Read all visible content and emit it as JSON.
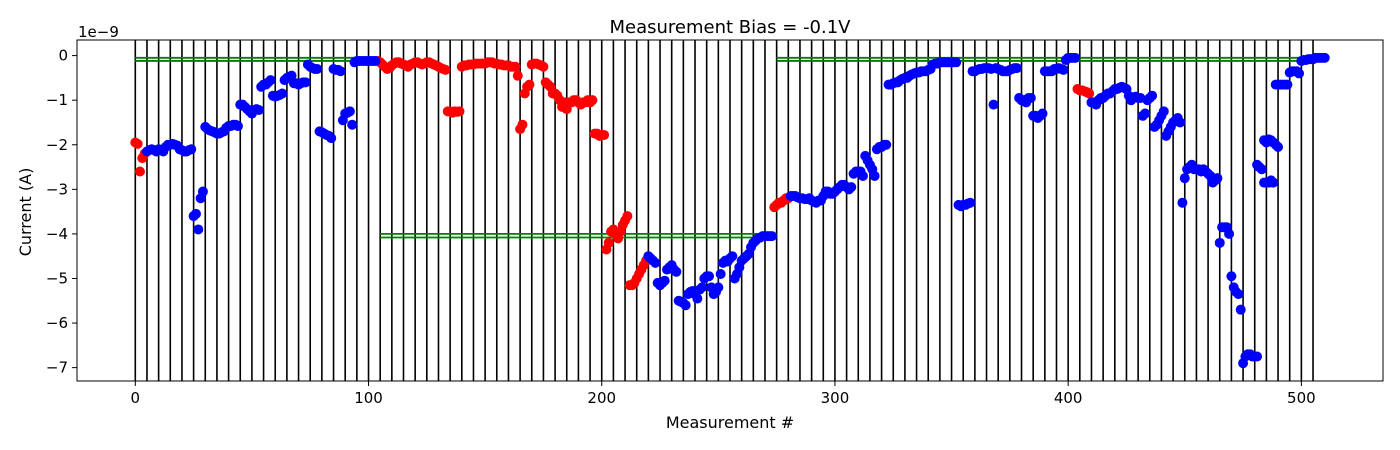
{
  "chart_data": {
    "type": "scatter",
    "title": "Measurement Bias = -0.1V",
    "xlabel": "Measurement #",
    "ylabel": "Current (A)",
    "y_offset_label": "1e−9",
    "xlim": [
      -25,
      535
    ],
    "ylim": [
      -7.3,
      0.35
    ],
    "xticks": [
      0,
      100,
      200,
      300,
      400,
      500
    ],
    "xtick_labels": [
      "0",
      "100",
      "200",
      "300",
      "400",
      "500"
    ],
    "yticks": [
      0,
      -1,
      -2,
      -3,
      -4,
      -5,
      -6,
      -7
    ],
    "ytick_labels": [
      "0",
      "−1",
      "−2",
      "−3",
      "−4",
      "−5",
      "−6",
      "−7"
    ],
    "grid": false,
    "colors": {
      "blue": "#0000ff",
      "red": "#ff0000",
      "green": "#008000",
      "vline": "#000000"
    },
    "vertical_lines_x": [
      0,
      5,
      10,
      15,
      20,
      25,
      30,
      35,
      40,
      45,
      50,
      55,
      60,
      65,
      70,
      75,
      80,
      85,
      90,
      95,
      100,
      105,
      110,
      115,
      120,
      125,
      130,
      135,
      140,
      145,
      150,
      155,
      160,
      165,
      170,
      175,
      180,
      185,
      190,
      195,
      200,
      205,
      210,
      215,
      220,
      225,
      230,
      235,
      240,
      245,
      250,
      255,
      260,
      265,
      270,
      275,
      280,
      285,
      290,
      295,
      300,
      305,
      310,
      315,
      320,
      325,
      330,
      335,
      340,
      345,
      350,
      355,
      360,
      365,
      370,
      375,
      380,
      385,
      390,
      395,
      400,
      405,
      410,
      415,
      420,
      425,
      430,
      435,
      440,
      445,
      450,
      455,
      460,
      465,
      470,
      475,
      480,
      485,
      490,
      495,
      500,
      505
    ],
    "reference_lines": [
      {
        "x_start": 0,
        "x_end": 103,
        "y": -0.05
      },
      {
        "x_start": 0,
        "x_end": 103,
        "y": -0.12
      },
      {
        "x_start": 105,
        "x_end": 275,
        "y": -4.0
      },
      {
        "x_start": 105,
        "x_end": 275,
        "y": -4.08
      },
      {
        "x_start": 275,
        "x_end": 505,
        "y": -0.05
      },
      {
        "x_start": 275,
        "x_end": 505,
        "y": -0.12
      }
    ],
    "series": [
      {
        "color": "#ff0000",
        "segments": [
          {
            "x_start": 0,
            "x_end": 4,
            "y": [
              -1.95,
              -1.98,
              -2.6,
              -2.3,
              -2.2
            ]
          },
          {
            "x_start": 104,
            "x_end": 133,
            "y": [
              -0.12,
              -0.15,
              -0.2,
              -0.25,
              -0.3,
              -0.28,
              -0.22,
              -0.18,
              -0.15,
              -0.15,
              -0.18,
              -0.2,
              -0.22,
              -0.25,
              -0.2,
              -0.18,
              -0.15,
              -0.15,
              -0.18,
              -0.2,
              -0.18,
              -0.15,
              -0.15,
              -0.18,
              -0.2,
              -0.22,
              -0.25,
              -0.28,
              -0.3,
              -0.32
            ]
          },
          {
            "x_start": 134,
            "x_end": 139,
            "y": [
              -1.25,
              -1.25,
              -1.28,
              -1.25,
              -1.26,
              -1.25
            ]
          },
          {
            "x_start": 140,
            "x_end": 163,
            "y": [
              -0.25,
              -0.22,
              -0.22,
              -0.2,
              -0.2,
              -0.2,
              -0.18,
              -0.18,
              -0.18,
              -0.18,
              -0.18,
              -0.15,
              -0.15,
              -0.15,
              -0.18,
              -0.18,
              -0.2,
              -0.2,
              -0.22,
              -0.22,
              -0.22,
              -0.25,
              -0.25,
              -0.25
            ]
          },
          {
            "x_start": 164,
            "x_end": 169,
            "y": [
              -0.45,
              -1.65,
              -1.55,
              -0.85,
              -0.7,
              -0.65
            ]
          },
          {
            "x_start": 170,
            "x_end": 175,
            "y": [
              -0.2,
              -0.18,
              -0.18,
              -0.2,
              -0.22,
              -0.25
            ]
          },
          {
            "x_start": 176,
            "x_end": 200,
            "y": [
              -0.6,
              -0.65,
              -0.7,
              -0.85,
              -0.85,
              -0.9,
              -1.0,
              -1.15,
              -1.05,
              -1.2,
              -1.05,
              -1.05,
              -1.0,
              -1.0,
              -1.05,
              -1.1,
              -1.05,
              -1.05,
              -1.0,
              -1.05,
              -1.0,
              -1.75,
              -1.75,
              -1.8,
              -1.78
            ]
          },
          {
            "x_start": 201,
            "x_end": 219,
            "y": [
              -1.78,
              -4.35,
              -4.2,
              -3.95,
              -3.9,
              -4.0,
              -4.1,
              -3.95,
              -3.8,
              -3.7,
              -3.6,
              -5.15,
              -5.15,
              -5.1,
              -5.0,
              -4.9,
              -4.8,
              -4.7,
              -4.6
            ]
          },
          {
            "x_start": 274,
            "x_end": 280,
            "y": [
              -3.4,
              -3.35,
              -3.3,
              -3.3,
              -3.25,
              -3.2,
              -3.2
            ]
          },
          {
            "x_start": 404,
            "x_end": 409,
            "y": [
              -0.75,
              -0.78,
              -0.78,
              -0.8,
              -0.82,
              -0.85
            ]
          }
        ]
      },
      {
        "color": "#0000ff",
        "segments": [
          {
            "x_start": 5,
            "x_end": 25,
            "y": [
              -2.15,
              -2.12,
              -2.1,
              -2.12,
              -2.15,
              -2.1,
              -2.12,
              -2.15,
              -2.05,
              -2.0,
              -2.0,
              -1.98,
              -2.0,
              -2.02,
              -2.1,
              -2.12,
              -2.15,
              -2.15,
              -2.12,
              -2.1,
              -3.6
            ]
          },
          {
            "x_start": 26,
            "x_end": 29,
            "y": [
              -3.55,
              -3.9,
              -3.2,
              -3.05
            ]
          },
          {
            "x_start": 30,
            "x_end": 50,
            "y": [
              -1.6,
              -1.65,
              -1.68,
              -1.7,
              -1.72,
              -1.75,
              -1.75,
              -1.72,
              -1.7,
              -1.62,
              -1.58,
              -1.58,
              -1.55,
              -1.55,
              -1.58,
              -1.1,
              -1.1,
              -1.15,
              -1.2,
              -1.25,
              -1.3
            ]
          },
          {
            "x_start": 51,
            "x_end": 73,
            "y": [
              -1.22,
              -1.2,
              -1.22,
              -0.7,
              -0.65,
              -0.65,
              -0.6,
              -0.55,
              -0.9,
              -0.92,
              -0.9,
              -0.88,
              -0.85,
              -0.55,
              -0.5,
              -0.48,
              -0.45,
              -0.62,
              -0.62,
              -0.65,
              -0.62,
              -0.6,
              -0.6
            ]
          },
          {
            "x_start": 74,
            "x_end": 86,
            "y": [
              -0.2,
              -0.25,
              -0.28,
              -0.3,
              -0.3,
              -1.7,
              -1.72,
              -1.75,
              -1.78,
              -1.8,
              -1.85,
              -0.3,
              -0.32
            ]
          },
          {
            "x_start": 87,
            "x_end": 93,
            "y": [
              -0.32,
              -0.35,
              -1.45,
              -1.3,
              -1.28,
              -1.25,
              -1.55
            ]
          },
          {
            "x_start": 94,
            "x_end": 103,
            "y": [
              -0.15,
              -0.12,
              -0.12,
              -0.12,
              -0.12,
              -0.12,
              -0.12,
              -0.12,
              -0.12,
              -0.12
            ]
          },
          {
            "x_start": 220,
            "x_end": 273,
            "y": [
              -4.5,
              -4.55,
              -4.6,
              -4.65,
              -5.1,
              -5.15,
              -5.1,
              -5.05,
              -4.8,
              -4.75,
              -4.7,
              -4.8,
              -4.85,
              -5.5,
              -5.52,
              -5.55,
              -5.6,
              -5.35,
              -5.3,
              -5.28,
              -5.35,
              -5.45,
              -5.25,
              -5.2,
              -5.0,
              -4.95,
              -4.95,
              -5.2,
              -5.35,
              -5.3,
              -5.2,
              -4.9,
              -4.65,
              -4.6,
              -4.62,
              -4.55,
              -4.5,
              -5.0,
              -4.9,
              -4.75,
              -4.6,
              -4.55,
              -4.5,
              -4.45,
              -4.3,
              -4.2,
              -4.15,
              -4.1,
              -4.08,
              -4.05,
              -4.05,
              -4.05,
              -4.05,
              -4.05
            ]
          },
          {
            "x_start": 281,
            "x_end": 322,
            "y": [
              -3.15,
              -3.15,
              -3.15,
              -3.18,
              -3.2,
              -3.2,
              -3.22,
              -3.22,
              -3.2,
              -3.25,
              -3.28,
              -3.3,
              -3.25,
              -3.25,
              -3.15,
              -3.05,
              -3.05,
              -3.1,
              -3.1,
              -3.05,
              -3.0,
              -2.95,
              -2.9,
              -2.9,
              -2.95,
              -3.0,
              -2.95,
              -2.65,
              -2.6,
              -2.6,
              -2.6,
              -2.7,
              -2.25,
              -2.35,
              -2.45,
              -2.55,
              -2.7,
              -2.1,
              -2.05,
              -2.05,
              -2.0,
              -2.0
            ]
          },
          {
            "x_start": 323,
            "x_end": 352,
            "y": [
              -0.65,
              -0.65,
              -0.62,
              -0.6,
              -0.6,
              -0.55,
              -0.52,
              -0.5,
              -0.5,
              -0.45,
              -0.42,
              -0.4,
              -0.38,
              -0.38,
              -0.35,
              -0.35,
              -0.35,
              -0.32,
              -0.3,
              -0.2,
              -0.18,
              -0.18,
              -0.15,
              -0.15,
              -0.15,
              -0.15,
              -0.15,
              -0.15,
              -0.15,
              -0.15
            ]
          },
          {
            "x_start": 353,
            "x_end": 358,
            "y": [
              -3.35,
              -3.38,
              -3.35,
              -3.35,
              -3.32,
              -3.3
            ]
          },
          {
            "x_start": 359,
            "x_end": 378,
            "y": [
              -0.35,
              -0.35,
              -0.32,
              -0.3,
              -0.3,
              -0.28,
              -0.28,
              -0.28,
              -0.3,
              -1.1,
              -0.28,
              -0.3,
              -0.32,
              -0.35,
              -0.35,
              -0.35,
              -0.32,
              -0.3,
              -0.28,
              -0.28
            ]
          },
          {
            "x_start": 379,
            "x_end": 392,
            "y": [
              -0.95,
              -1.0,
              -1.0,
              -1.05,
              -0.95,
              -0.95,
              -1.35,
              -1.35,
              -1.4,
              -1.35,
              -1.3,
              -0.35,
              -0.35,
              -0.35
            ]
          },
          {
            "x_start": 393,
            "x_end": 403,
            "y": [
              -0.35,
              -0.3,
              -0.3,
              -0.28,
              -0.3,
              -0.32,
              -0.1,
              -0.05,
              -0.05,
              -0.05,
              -0.05
            ]
          },
          {
            "x_start": 410,
            "x_end": 448,
            "y": [
              -1.05,
              -1.05,
              -1.1,
              -1.0,
              -0.95,
              -0.95,
              -0.9,
              -0.85,
              -0.85,
              -0.8,
              -0.75,
              -0.75,
              -0.72,
              -0.7,
              -0.72,
              -0.75,
              -0.9,
              -1.0,
              -0.95,
              -0.92,
              -0.95,
              -0.95,
              -1.35,
              -1.3,
              -1.0,
              -0.95,
              -0.9,
              -1.6,
              -1.55,
              -1.45,
              -1.35,
              -1.25,
              -1.8,
              -1.7,
              -1.6,
              -1.5,
              -1.45,
              -1.4,
              -1.5
            ]
          },
          {
            "x_start": 449,
            "x_end": 464,
            "y": [
              -3.3,
              -2.75,
              -2.55,
              -2.5,
              -2.45,
              -2.55,
              -2.55,
              -2.55,
              -2.6,
              -2.55,
              -2.6,
              -2.65,
              -2.7,
              -2.85,
              -2.8,
              -2.75
            ]
          },
          {
            "x_start": 465,
            "x_end": 469,
            "y": [
              -4.2,
              -3.85,
              -3.85,
              -3.85,
              -4.0
            ]
          },
          {
            "x_start": 470,
            "x_end": 481,
            "y": [
              -4.95,
              -5.2,
              -5.3,
              -5.35,
              -5.7,
              -6.9,
              -6.75,
              -6.7,
              -6.7,
              -6.75,
              -6.75,
              -6.75
            ]
          },
          {
            "x_start": 481,
            "x_end": 488,
            "y": [
              -2.45,
              -2.5,
              -2.55,
              -2.85,
              -2.85,
              -2.85,
              -2.8,
              -2.85
            ]
          },
          {
            "x_start": 484,
            "x_end": 490,
            "y": [
              -1.9,
              -1.95,
              -1.88,
              -1.9,
              -1.95,
              -2.0,
              -2.05
            ]
          },
          {
            "x_start": 489,
            "x_end": 494,
            "y": [
              -0.65,
              -0.65,
              -0.65,
              -0.65,
              -0.65,
              -0.65
            ]
          },
          {
            "x_start": 495,
            "x_end": 499,
            "y": [
              -0.38,
              -0.35,
              -0.35,
              -0.35,
              -0.4
            ]
          },
          {
            "x_start": 500,
            "x_end": 510,
            "y": [
              -0.12,
              -0.1,
              -0.1,
              -0.08,
              -0.08,
              -0.08,
              -0.05,
              -0.05,
              -0.05,
              -0.05,
              -0.05
            ]
          }
        ]
      }
    ]
  }
}
